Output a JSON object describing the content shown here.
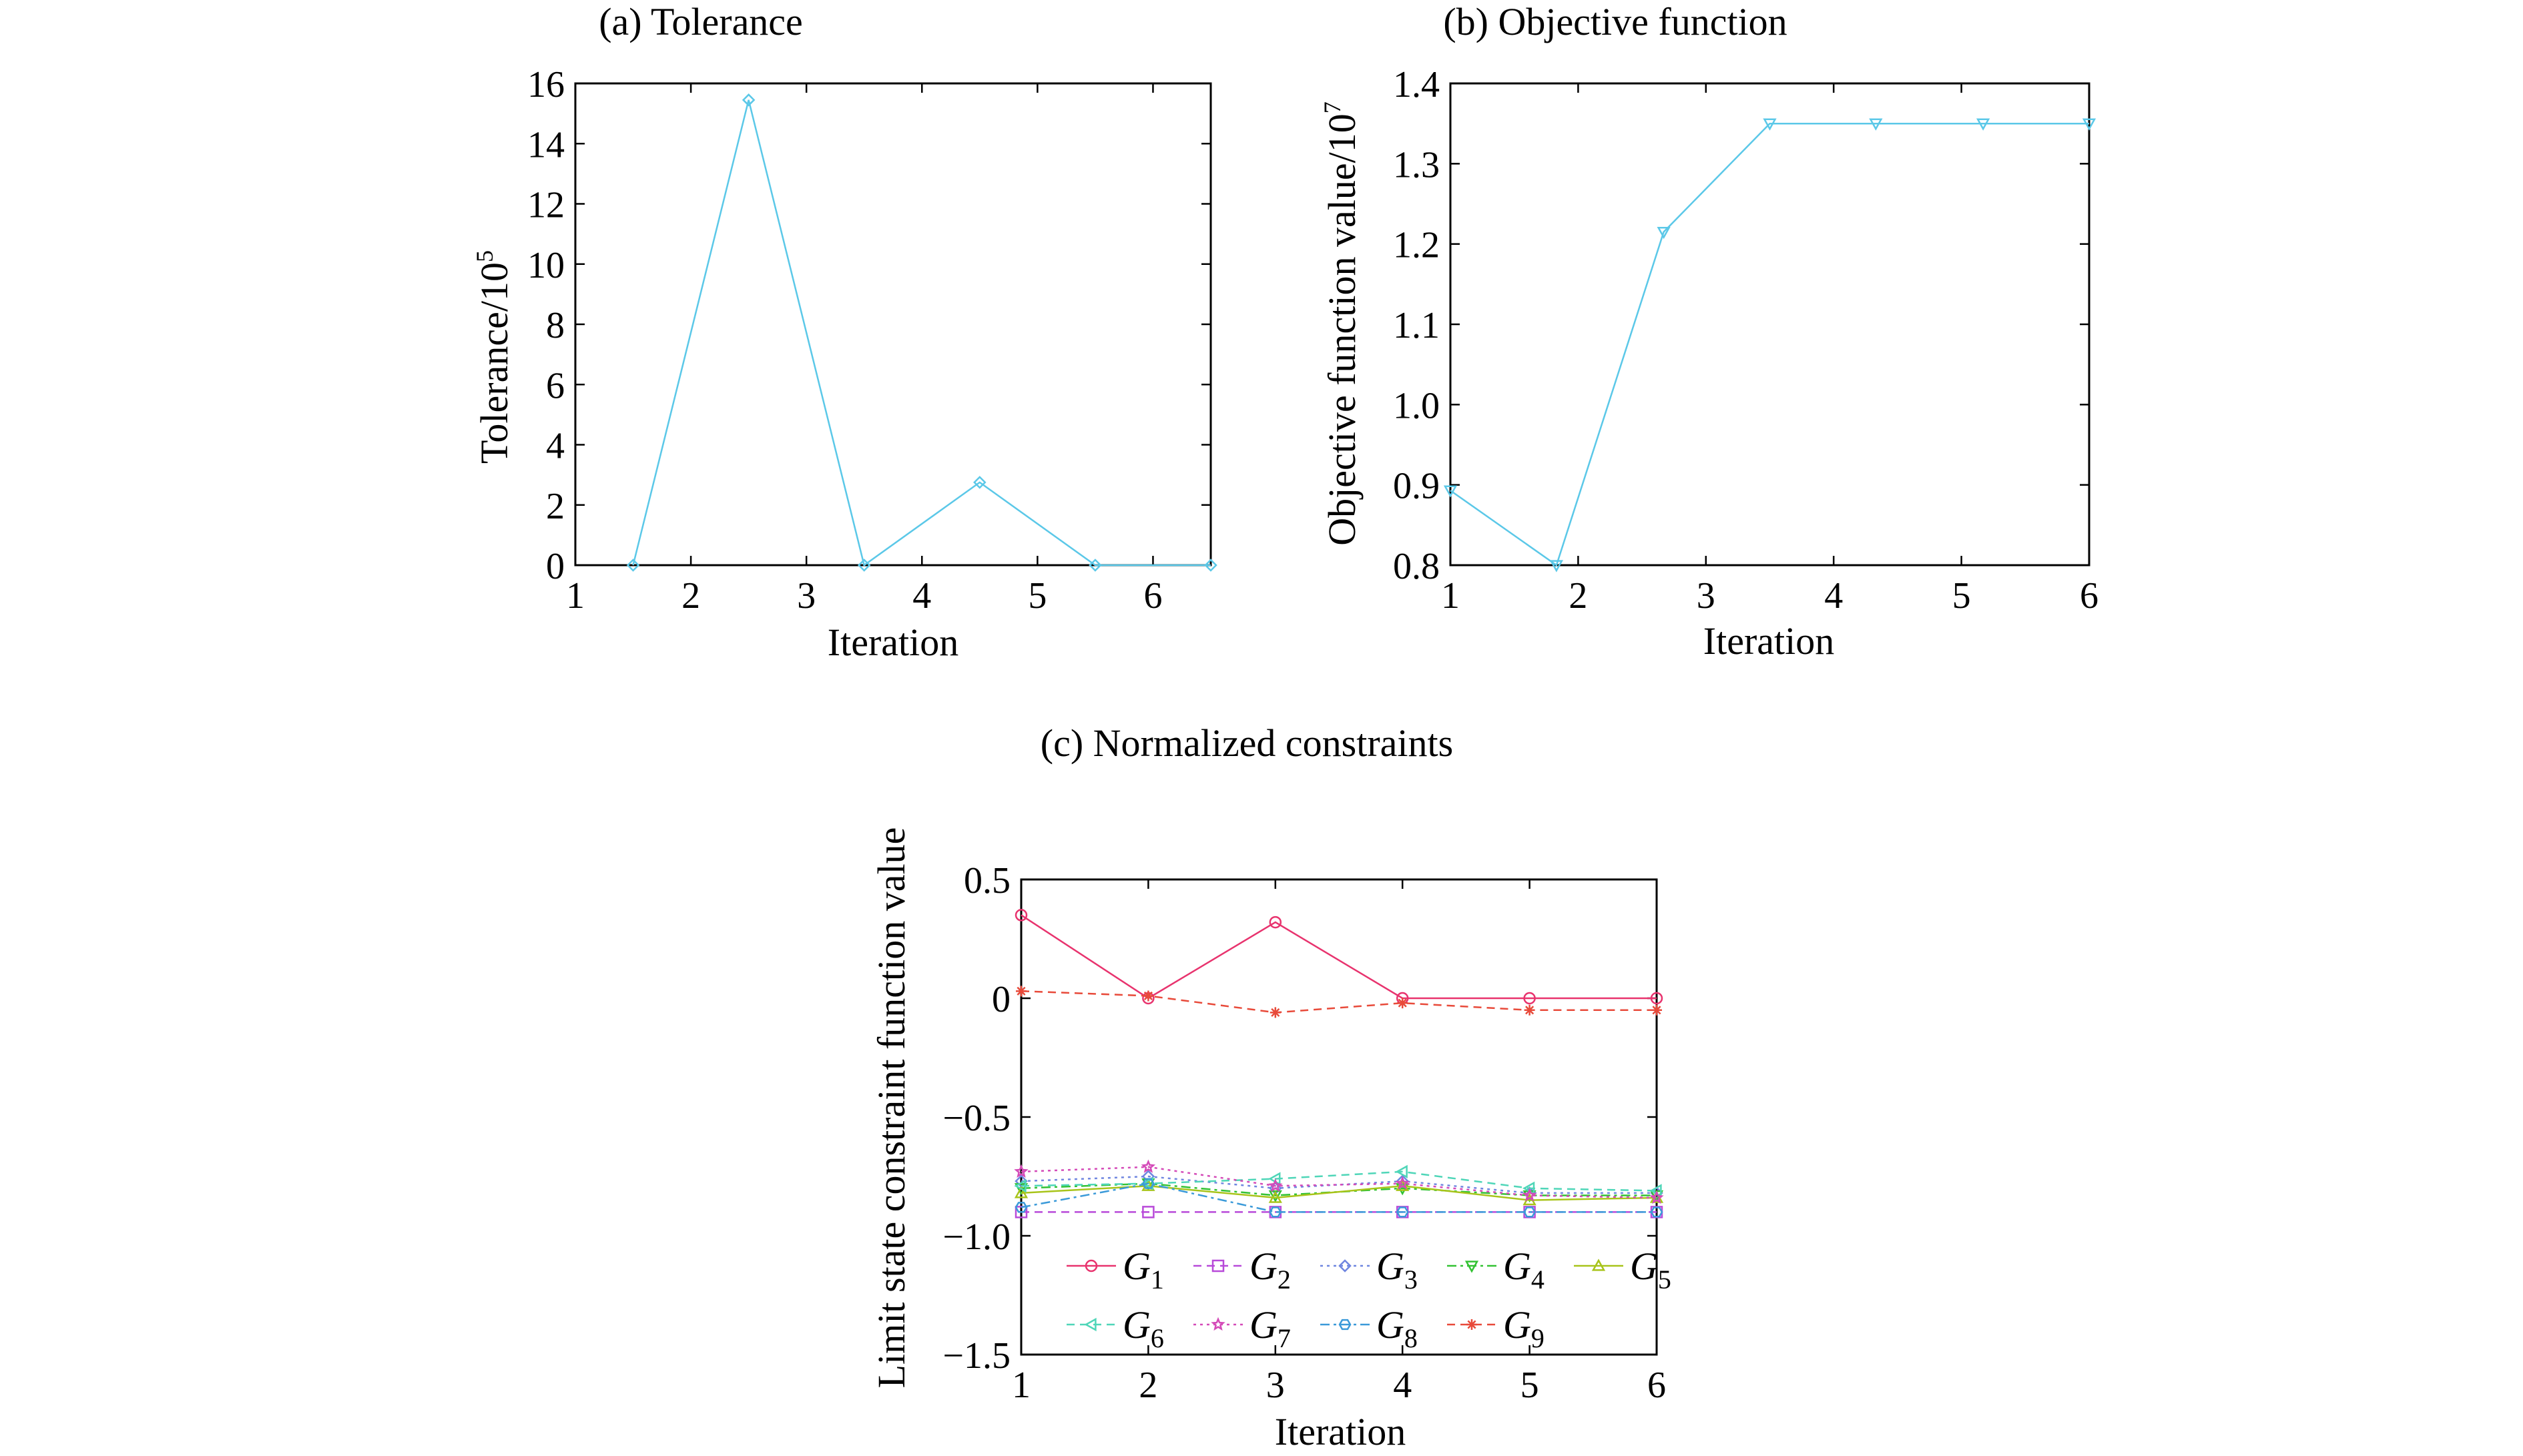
{
  "chart_data": [
    {
      "id": "a",
      "type": "line",
      "title": "(a) Tolerance",
      "xlabel": "Iteration",
      "ylabel": "Tolerance/10",
      "ylabel_exp": "5",
      "xlim": [
        1,
        6.5
      ],
      "ylim": [
        0,
        16
      ],
      "xticks": [
        "1",
        "2",
        "3",
        "4",
        "5",
        "6"
      ],
      "yticks": [
        "0",
        "2",
        "4",
        "6",
        "8",
        "10",
        "12",
        "14",
        "16"
      ],
      "grid": false,
      "series": [
        {
          "color": "#5bc8e8",
          "marker": "diamond",
          "x": [
            1.5,
            2.5,
            3.5,
            4.5,
            5.5,
            6.5
          ],
          "y": [
            0,
            15.45,
            0,
            2.75,
            0,
            0
          ]
        }
      ]
    },
    {
      "id": "b",
      "type": "line",
      "title": "(b) Objective function",
      "xlabel": "Iteration",
      "ylabel": "Objective function value/10",
      "ylabel_exp": "7",
      "xlim": [
        1,
        6
      ],
      "ylim": [
        0.8,
        1.4
      ],
      "xticks": [
        "1",
        "2",
        "3",
        "4",
        "5",
        "6"
      ],
      "yticks": [
        "0.8",
        "0.9",
        "1.0",
        "1.1",
        "1.2",
        "1.3",
        "1.4"
      ],
      "grid": false,
      "series": [
        {
          "color": "#5bc8e8",
          "marker": "triangle-down",
          "x": [
            1.0,
            1.83,
            2.67,
            3.5,
            4.33,
            5.17,
            6.0
          ],
          "y": [
            0.893,
            0.8,
            1.215,
            1.35,
            1.35,
            1.35,
            1.35
          ]
        }
      ]
    },
    {
      "id": "c",
      "type": "line",
      "title": "(c) Normalized constraints",
      "xlabel": "Iteration",
      "ylabel": "Limit state constraint function value",
      "xlim": [
        1,
        6
      ],
      "ylim": [
        -1.5,
        0.5
      ],
      "xticks": [
        "1",
        "2",
        "3",
        "4",
        "5",
        "6"
      ],
      "yticks": [
        "−1.5",
        "−1.0",
        "−0.5",
        "0",
        "0.5"
      ],
      "grid": false,
      "legend_position": "lower-center",
      "x": [
        1,
        2,
        3,
        4,
        5,
        6
      ],
      "series": [
        {
          "name": "G",
          "sub": "1",
          "color": "#e8336e",
          "marker": "circle",
          "dash": "",
          "values": [
            0.35,
            0.0,
            0.32,
            0.0,
            0.0,
            0.0
          ]
        },
        {
          "name": "G",
          "sub": "2",
          "color": "#b84ad9",
          "marker": "square",
          "dash": "12,8",
          "values": [
            -0.9,
            -0.9,
            -0.9,
            -0.9,
            -0.9,
            -0.9
          ]
        },
        {
          "name": "G",
          "sub": "3",
          "color": "#6f86e0",
          "marker": "diamond",
          "dash": "4,6",
          "values": [
            -0.77,
            -0.75,
            -0.8,
            -0.77,
            -0.82,
            -0.82
          ]
        },
        {
          "name": "G",
          "sub": "4",
          "color": "#33c233",
          "marker": "triangle-down",
          "dash": "14,6,4,6",
          "values": [
            -0.8,
            -0.78,
            -0.83,
            -0.8,
            -0.83,
            -0.83
          ]
        },
        {
          "name": "G",
          "sub": "5",
          "color": "#a8c41a",
          "marker": "triangle-up",
          "dash": "",
          "values": [
            -0.82,
            -0.79,
            -0.84,
            -0.79,
            -0.85,
            -0.84
          ]
        },
        {
          "name": "G",
          "sub": "6",
          "color": "#4fd6b8",
          "marker": "triangle-left",
          "dash": "12,8",
          "values": [
            -0.79,
            -0.78,
            -0.76,
            -0.73,
            -0.8,
            -0.81
          ]
        },
        {
          "name": "G",
          "sub": "7",
          "color": "#d44ab8",
          "marker": "star",
          "dash": "4,6",
          "values": [
            -0.73,
            -0.71,
            -0.79,
            -0.78,
            -0.83,
            -0.84
          ]
        },
        {
          "name": "G",
          "sub": "8",
          "color": "#3b9ad9",
          "marker": "hexagon",
          "dash": "14,6,4,6",
          "values": [
            -0.88,
            -0.78,
            -0.9,
            -0.9,
            -0.9,
            -0.9
          ]
        },
        {
          "name": "G",
          "sub": "9",
          "color": "#e84a3a",
          "marker": "asterisk",
          "dash": "12,8",
          "values": [
            0.03,
            0.01,
            -0.06,
            -0.02,
            -0.05,
            -0.05
          ]
        }
      ]
    }
  ]
}
